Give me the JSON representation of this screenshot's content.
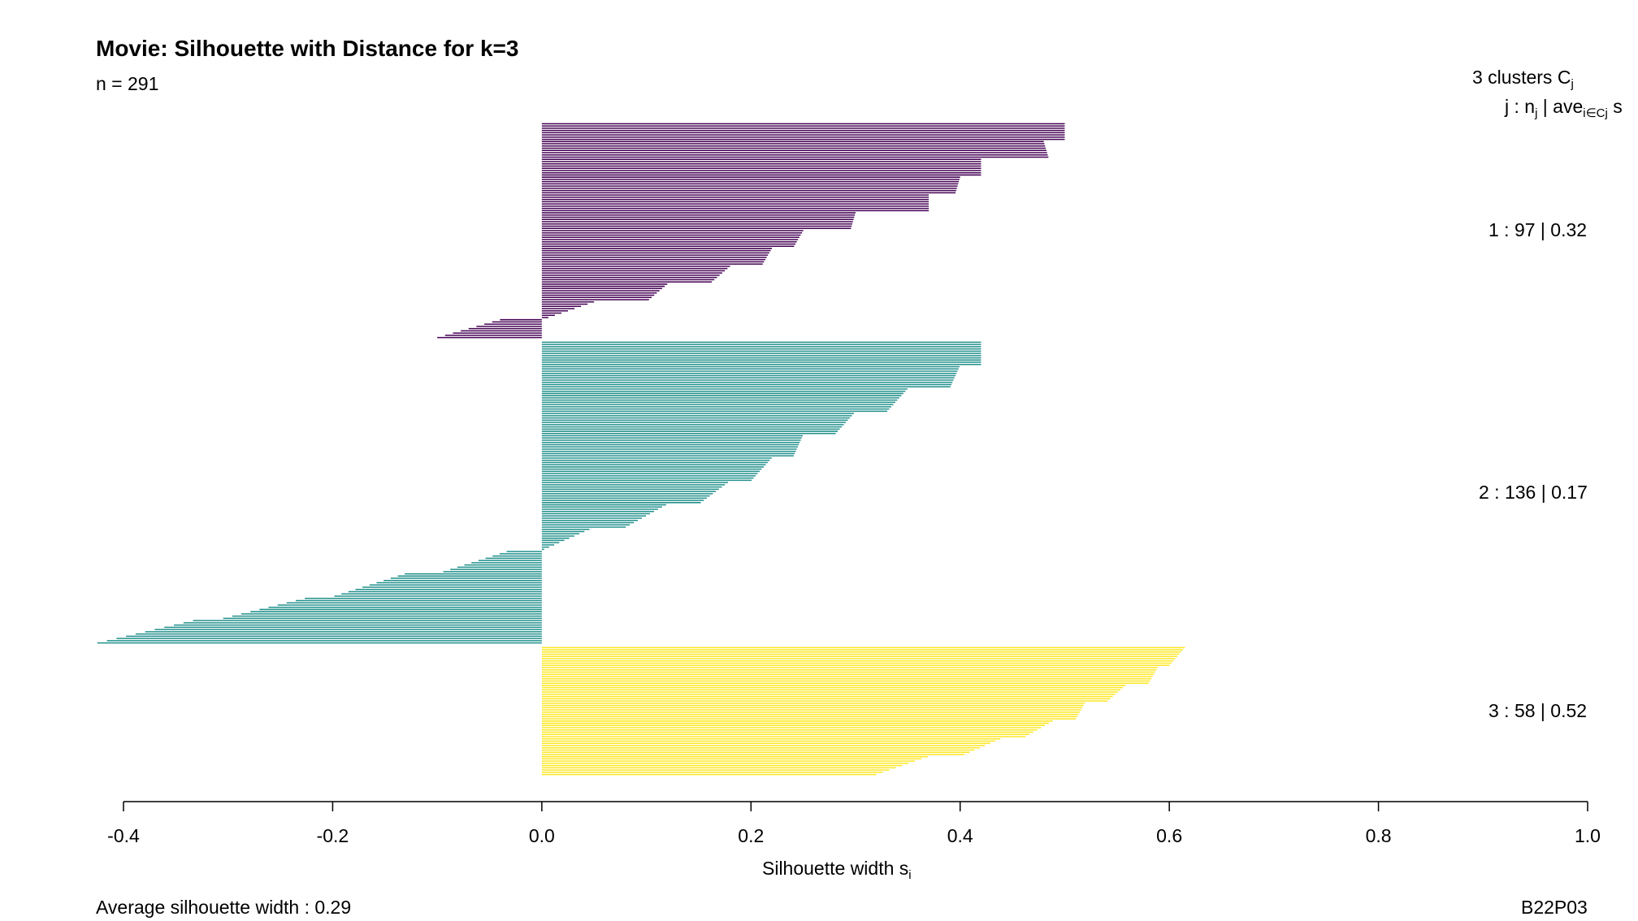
{
  "chart_data": {
    "type": "bar",
    "orientation": "horizontal",
    "title": "Movie: Silhouette with Distance for k=3",
    "subtitle": "n = 291",
    "xlabel": "Silhouette width s",
    "xlabel_sub": "i",
    "xlim": [
      -0.4,
      1.0
    ],
    "x_ticks": [
      "-0.4",
      "-0.2",
      "0.0",
      "0.2",
      "0.4",
      "0.6",
      "0.8",
      "1.0"
    ],
    "legend_head": "3  clusters  C",
    "legend_head_sub": "j",
    "legend_sub": "j :  n",
    "legend_sub_mid": " | ave",
    "legend_sub_sub1": "j",
    "legend_sub_sub2": "i∈Cj",
    "legend_sub_tail": " s",
    "clusters": [
      {
        "id": 1,
        "n": 97,
        "avg": 0.32,
        "label": "1 :   97  |  0.32",
        "color": "#440154",
        "anchors": [
          [
            0.5,
            0.5
          ],
          [
            0.48,
            0.485
          ],
          [
            0.42,
            0.42
          ],
          [
            0.4,
            0.395
          ],
          [
            0.37,
            0.37
          ],
          [
            0.3,
            0.295
          ],
          [
            0.25,
            0.24
          ],
          [
            0.22,
            0.21
          ],
          [
            0.18,
            0.16
          ],
          [
            0.12,
            0.1
          ],
          [
            0.05,
            0.0
          ],
          [
            -0.04,
            -0.1
          ]
        ]
      },
      {
        "id": 2,
        "n": 136,
        "avg": 0.17,
        "label": "2 :   136  |  0.17",
        "color": "#21908C",
        "anchors": [
          [
            0.42,
            0.42
          ],
          [
            0.4,
            0.39
          ],
          [
            0.35,
            0.33
          ],
          [
            0.3,
            0.28
          ],
          [
            0.25,
            0.24
          ],
          [
            0.22,
            0.2
          ],
          [
            0.18,
            0.15
          ],
          [
            0.12,
            0.08
          ],
          [
            0.05,
            0.0
          ],
          [
            -0.03,
            -0.1
          ],
          [
            -0.13,
            -0.2
          ],
          [
            -0.22,
            -0.31
          ],
          [
            -0.33,
            -0.425
          ]
        ]
      },
      {
        "id": 3,
        "n": 58,
        "avg": 0.52,
        "label": "3 :   58  |  0.52",
        "color": "#FDE725",
        "anchors": [
          [
            0.615,
            0.6
          ],
          [
            0.59,
            0.58
          ],
          [
            0.56,
            0.54
          ],
          [
            0.52,
            0.51
          ],
          [
            0.49,
            0.46
          ],
          [
            0.44,
            0.4
          ],
          [
            0.37,
            0.32
          ]
        ]
      }
    ],
    "average_silhouette_width": 0.29,
    "average_label": "Average silhouette width :  0.29",
    "footer_code": "B22P03"
  }
}
